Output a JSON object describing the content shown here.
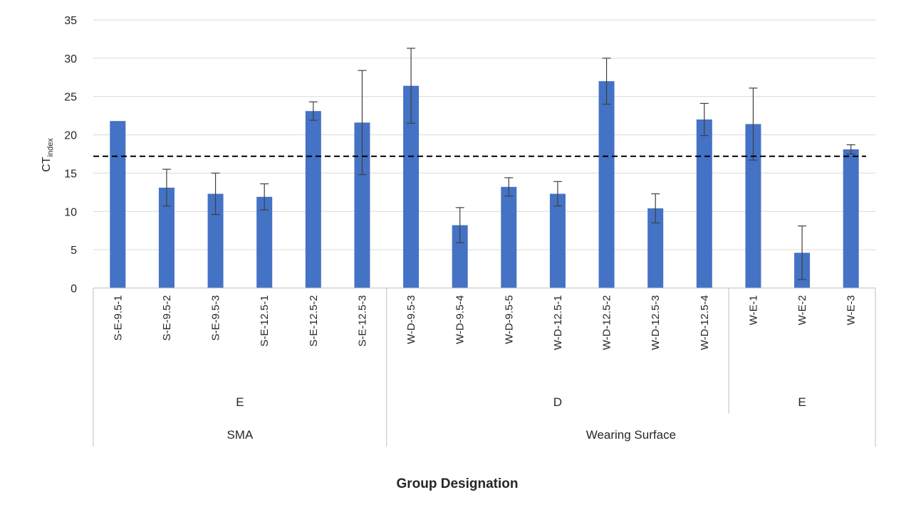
{
  "chart_data": {
    "type": "bar",
    "categories": [
      "S-E-9.5-1",
      "S-E-9.5-2",
      "S-E-9.5-3",
      "S-E-12.5-1",
      "S-E-12.5-2",
      "S-E-12.5-3",
      "W-D-9.5-3",
      "W-D-9.5-4",
      "W-D-9.5-5",
      "W-D-12.5-1",
      "W-D-12.5-2",
      "W-D-12.5-3",
      "W-D-12.5-4",
      "W-E-1",
      "W-E-2",
      "W-E-3"
    ],
    "values": [
      21.8,
      13.1,
      12.3,
      11.9,
      23.1,
      21.6,
      26.4,
      8.2,
      13.2,
      12.3,
      27.0,
      10.4,
      22.0,
      21.4,
      4.6,
      18.1
    ],
    "error": [
      null,
      2.4,
      2.7,
      1.7,
      1.2,
      6.8,
      4.9,
      2.3,
      1.2,
      1.6,
      3.0,
      1.9,
      2.1,
      4.7,
      3.5,
      0.6
    ],
    "group_levels": [
      [
        {
          "label": "E",
          "start": 0,
          "end": 5
        },
        {
          "label": "D",
          "start": 6,
          "end": 12
        },
        {
          "label": "E",
          "start": 13,
          "end": 15
        }
      ],
      [
        {
          "label": "SMA",
          "start": 0,
          "end": 5
        },
        {
          "label": "Wearing Surface",
          "start": 6,
          "end": 15
        }
      ]
    ],
    "threshold": 17.2,
    "ylim": [
      0,
      35
    ],
    "yticks": [
      0,
      5,
      10,
      15,
      20,
      25,
      30,
      35
    ],
    "ylabel": "CT",
    "ylabel_sub": "index",
    "xlabel": "Group Designation",
    "grid": true,
    "bar_color": "#4472c4",
    "grid_color": "#d9d9d9"
  }
}
